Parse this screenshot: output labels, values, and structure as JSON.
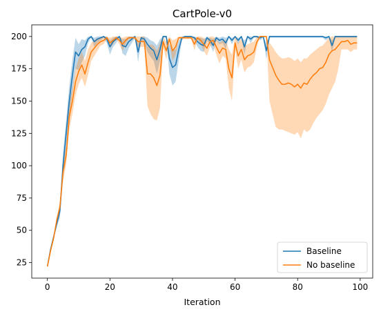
{
  "chart_data": {
    "type": "line",
    "title": "CartPole-v0",
    "xlabel": "Iteration",
    "ylabel": "",
    "xlim": [
      -5,
      104
    ],
    "ylim": [
      13,
      209
    ],
    "xticks": [
      0,
      20,
      40,
      60,
      80,
      100
    ],
    "yticks": [
      25,
      50,
      75,
      100,
      125,
      150,
      175,
      200
    ],
    "grid": false,
    "legend_position": "lower right",
    "series": [
      {
        "name": "Baseline",
        "color": "#1f77b4",
        "band_color": "#1f77b4",
        "band_alpha": 0.3,
        "x": [
          0,
          1,
          2,
          3,
          4,
          5,
          6,
          7,
          8,
          9,
          10,
          11,
          12,
          13,
          14,
          15,
          16,
          17,
          18,
          19,
          20,
          21,
          22,
          23,
          24,
          25,
          26,
          27,
          28,
          29,
          30,
          31,
          32,
          33,
          34,
          35,
          36,
          37,
          38,
          39,
          40,
          41,
          42,
          43,
          44,
          45,
          46,
          47,
          48,
          49,
          50,
          51,
          52,
          53,
          54,
          55,
          56,
          57,
          58,
          59,
          60,
          61,
          62,
          63,
          64,
          65,
          66,
          67,
          68,
          69,
          70,
          71,
          72,
          73,
          74,
          75,
          76,
          77,
          78,
          79,
          80,
          81,
          82,
          83,
          84,
          85,
          86,
          87,
          88,
          89,
          90,
          91,
          92,
          93,
          94,
          95,
          96,
          97,
          98,
          99
        ],
        "y": [
          22,
          35,
          45,
          55,
          65,
          100,
          125,
          150,
          170,
          188,
          185,
          190,
          192,
          198,
          200,
          196,
          198,
          199,
          200,
          198,
          192,
          196,
          198,
          200,
          193,
          192,
          196,
          198,
          200,
          188,
          199,
          198,
          194,
          191,
          189,
          182,
          190,
          200,
          200,
          183,
          176,
          178,
          190,
          199,
          200,
          200,
          200,
          199,
          196,
          194,
          193,
          199,
          197,
          193,
          199,
          197,
          198,
          195,
          200,
          197,
          200,
          197,
          200,
          192,
          200,
          198,
          200,
          200,
          199,
          200,
          189,
          200,
          200,
          200,
          200,
          200,
          200,
          200,
          200,
          200,
          200,
          200,
          200,
          200,
          200,
          200,
          200,
          200,
          200,
          199,
          200,
          193,
          200,
          200,
          200,
          200,
          200,
          200,
          200,
          200
        ],
        "upper": [
          22,
          36,
          46,
          57,
          70,
          110,
          135,
          162,
          182,
          199,
          194,
          198,
          197,
          200,
          200,
          199,
          200,
          200,
          200,
          200,
          197,
          199,
          200,
          200,
          198,
          198,
          200,
          200,
          200,
          195,
          200,
          200,
          199,
          197,
          196,
          193,
          198,
          200,
          200,
          194,
          190,
          190,
          197,
          200,
          200,
          200,
          200,
          200,
          199,
          199,
          198,
          200,
          199,
          198,
          200,
          199,
          200,
          199,
          200,
          199,
          200,
          199,
          200,
          197,
          200,
          200,
          200,
          200,
          200,
          200,
          195,
          200,
          200,
          200,
          200,
          200,
          200,
          200,
          200,
          200,
          200,
          200,
          200,
          200,
          200,
          200,
          200,
          200,
          200,
          200,
          200,
          197,
          200,
          200,
          200,
          200,
          200,
          200,
          200,
          200
        ],
        "lower": [
          22,
          33,
          43,
          53,
          60,
          90,
          115,
          138,
          156,
          175,
          174,
          180,
          185,
          195,
          199,
          192,
          195,
          197,
          199,
          195,
          186,
          192,
          195,
          199,
          187,
          185,
          191,
          195,
          199,
          180,
          197,
          195,
          188,
          184,
          181,
          171,
          181,
          199,
          199,
          171,
          162,
          165,
          182,
          197,
          200,
          199,
          200,
          197,
          192,
          189,
          188,
          197,
          194,
          188,
          197,
          194,
          195,
          190,
          199,
          194,
          199,
          194,
          199,
          186,
          199,
          195,
          199,
          199,
          197,
          199,
          182,
          199,
          199,
          199,
          199,
          199,
          199,
          199,
          199,
          199,
          199,
          199,
          199,
          199,
          199,
          199,
          199,
          199,
          199,
          197,
          199,
          188,
          199,
          199,
          199,
          199,
          199,
          199,
          199,
          199
        ]
      },
      {
        "name": "No baseline",
        "color": "#ff7f0e",
        "band_color": "#ff7f0e",
        "band_alpha": 0.3,
        "x": [
          0,
          1,
          2,
          3,
          4,
          5,
          6,
          7,
          8,
          9,
          10,
          11,
          12,
          13,
          14,
          15,
          16,
          17,
          18,
          19,
          20,
          21,
          22,
          23,
          24,
          25,
          26,
          27,
          28,
          29,
          30,
          31,
          32,
          33,
          34,
          35,
          36,
          37,
          38,
          39,
          40,
          41,
          42,
          43,
          44,
          45,
          46,
          47,
          48,
          49,
          50,
          51,
          52,
          53,
          54,
          55,
          56,
          57,
          58,
          59,
          60,
          61,
          62,
          63,
          64,
          65,
          66,
          67,
          68,
          69,
          70,
          71,
          72,
          73,
          74,
          75,
          76,
          77,
          78,
          79,
          80,
          81,
          82,
          83,
          84,
          85,
          86,
          87,
          88,
          89,
          90,
          91,
          92,
          93,
          94,
          95,
          96,
          97,
          98,
          99
        ],
        "y": [
          22,
          34,
          44,
          58,
          68,
          95,
          108,
          138,
          150,
          165,
          173,
          178,
          171,
          180,
          188,
          191,
          194,
          196,
          197,
          199,
          195,
          197,
          199,
          197,
          194,
          197,
          199,
          199,
          199,
          196,
          196,
          196,
          171,
          171,
          168,
          162,
          170,
          196,
          189,
          198,
          189,
          192,
          199,
          199,
          199,
          199,
          199,
          194,
          199,
          197,
          194,
          191,
          196,
          197,
          192,
          187,
          191,
          190,
          175,
          168,
          195,
          185,
          190,
          182,
          185,
          186,
          188,
          196,
          200,
          200,
          200,
          182,
          176,
          170,
          166,
          163,
          163,
          164,
          163,
          161,
          163,
          160,
          164,
          163,
          167,
          170,
          172,
          175,
          176,
          180,
          186,
          189,
          190,
          193,
          196,
          196,
          197,
          194,
          195,
          195
        ],
        "upper": [
          22,
          35,
          45,
          60,
          72,
          102,
          115,
          148,
          160,
          175,
          183,
          188,
          181,
          190,
          195,
          197,
          199,
          199,
          200,
          200,
          199,
          200,
          200,
          200,
          199,
          200,
          200,
          200,
          200,
          200,
          200,
          200,
          192,
          194,
          193,
          189,
          195,
          200,
          196,
          200,
          197,
          198,
          200,
          200,
          200,
          200,
          200,
          199,
          200,
          200,
          199,
          197,
          200,
          200,
          198,
          195,
          197,
          197,
          190,
          186,
          200,
          195,
          198,
          192,
          194,
          195,
          196,
          200,
          200,
          200,
          200,
          195,
          192,
          188,
          185,
          183,
          183,
          184,
          183,
          181,
          183,
          180,
          183,
          183,
          186,
          188,
          190,
          192,
          193,
          196,
          199,
          200,
          200,
          200,
          200,
          200,
          200,
          200,
          200,
          200
        ],
        "lower": [
          22,
          33,
          43,
          56,
          64,
          88,
          101,
          128,
          140,
          155,
          163,
          168,
          161,
          170,
          181,
          185,
          189,
          193,
          194,
          198,
          191,
          194,
          198,
          194,
          189,
          194,
          198,
          198,
          198,
          192,
          192,
          192,
          146,
          140,
          136,
          135,
          145,
          192,
          182,
          196,
          181,
          186,
          198,
          198,
          198,
          198,
          198,
          189,
          198,
          194,
          189,
          185,
          192,
          194,
          186,
          179,
          185,
          183,
          160,
          150,
          190,
          175,
          182,
          172,
          176,
          177,
          180,
          192,
          200,
          200,
          200,
          150,
          140,
          130,
          128,
          128,
          127,
          126,
          125,
          124,
          126,
          121,
          128,
          126,
          128,
          133,
          137,
          140,
          143,
          148,
          155,
          160,
          165,
          175,
          190,
          190,
          190,
          188,
          190,
          190
        ]
      }
    ]
  }
}
